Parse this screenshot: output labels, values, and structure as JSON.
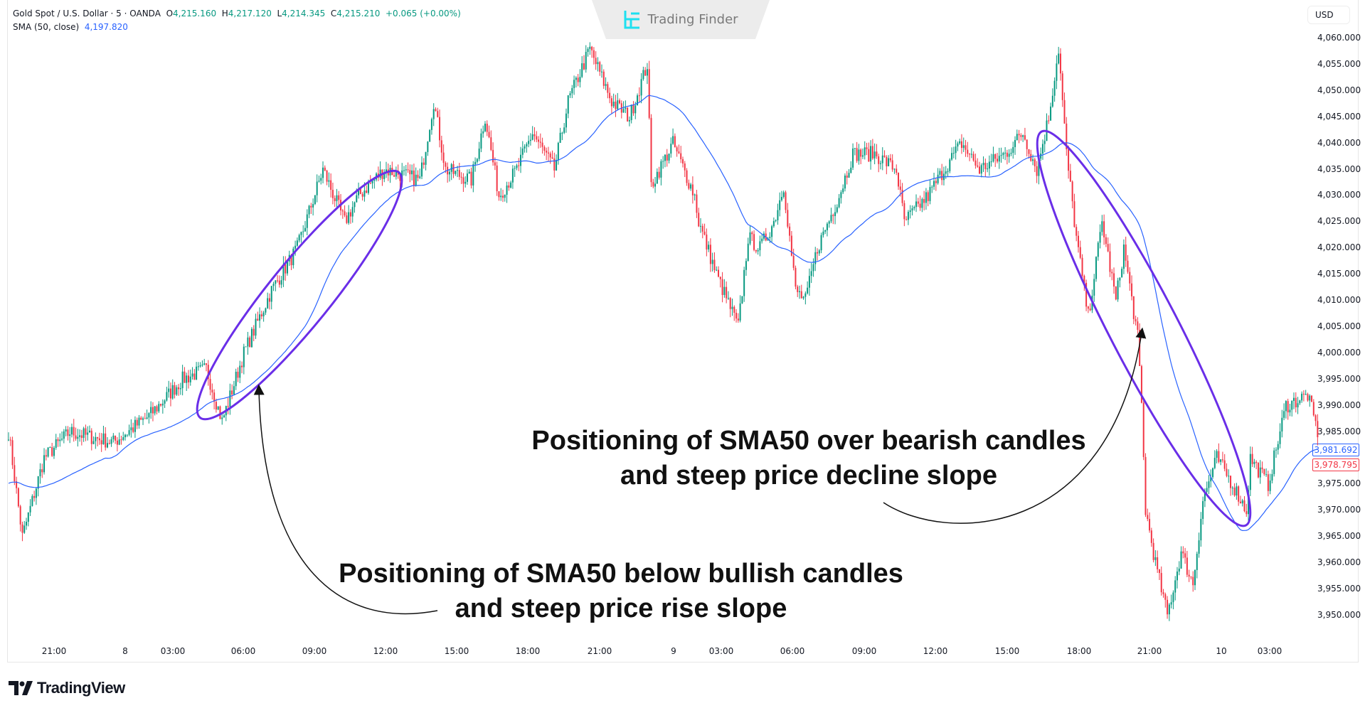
{
  "header": {
    "symbol": "Gold Spot / U.S. Dollar · 5 · OANDA",
    "open_label": "O",
    "open": "4,215.160",
    "high_label": "H",
    "high": "4,217.120",
    "low_label": "L",
    "low": "4,214.345",
    "close_label": "C",
    "close": "4,215.210",
    "change": "+0.065 (+0.00%)",
    "indicator": "SMA (50, close)",
    "indicator_value": "4,197.820"
  },
  "watermark": "Trading Finder",
  "currency": "USD",
  "price_ticks": [
    "4,060.000",
    "4,055.000",
    "4,050.000",
    "4,045.000",
    "4,040.000",
    "4,035.000",
    "4,030.000",
    "4,025.000",
    "4,020.000",
    "4,015.000",
    "4,010.000",
    "4,005.000",
    "4,000.000",
    "3,995.000",
    "3,990.000",
    "3,985.000",
    "3,975.000",
    "3,970.000",
    "3,965.000",
    "3,960.000",
    "3,955.000",
    "3,950.000"
  ],
  "time_ticks": [
    "21:00",
    "8",
    "03:00",
    "06:00",
    "09:00",
    "12:00",
    "15:00",
    "18:00",
    "21:00",
    "9",
    "03:00",
    "06:00",
    "09:00",
    "12:00",
    "15:00",
    "18:00",
    "21:00",
    "10",
    "03:00"
  ],
  "price_labels": {
    "sma": "3,981.692",
    "last": "3,978.795"
  },
  "annotations": {
    "bearish_line1": "Positioning of SMA50 over bearish candles",
    "bearish_line2": "and steep price decline slope",
    "bullish_line1": "Positioning of SMA50 below bullish candles",
    "bullish_line2": "and steep price rise slope"
  },
  "footer_logo": "TradingView",
  "colors": {
    "up": "#089981",
    "down": "#f23645",
    "sma": "#2962ff",
    "ellipse": "#6a2ee8"
  },
  "chart_data": {
    "type": "candlestick",
    "interval": "5m",
    "ylim": [
      3947,
      4062
    ],
    "indicator": {
      "name": "SMA",
      "period": 50
    },
    "close_path": [
      [
        0,
        3985
      ],
      [
        7,
        3965
      ],
      [
        18,
        3980
      ],
      [
        31,
        3985
      ],
      [
        53,
        3983
      ],
      [
        71,
        3988
      ],
      [
        88,
        3995
      ],
      [
        100,
        3997
      ],
      [
        108,
        3987
      ],
      [
        119,
        4000
      ],
      [
        133,
        4012
      ],
      [
        146,
        4020
      ],
      [
        159,
        4035
      ],
      [
        170,
        4025
      ],
      [
        177,
        4030
      ],
      [
        190,
        4035
      ],
      [
        208,
        4033
      ],
      [
        215,
        4048
      ],
      [
        221,
        4035
      ],
      [
        234,
        4033
      ],
      [
        241,
        4045
      ],
      [
        248,
        4030
      ],
      [
        257,
        4035
      ],
      [
        265,
        4042
      ],
      [
        276,
        4035
      ],
      [
        283,
        4048
      ],
      [
        294,
        4058
      ],
      [
        305,
        4048
      ],
      [
        314,
        4045
      ],
      [
        323,
        4055
      ],
      [
        325,
        4032
      ],
      [
        336,
        4040
      ],
      [
        347,
        4030
      ],
      [
        349,
        4025
      ],
      [
        358,
        4015
      ],
      [
        369,
        4005
      ],
      [
        374,
        4022
      ],
      [
        380,
        4020
      ],
      [
        387,
        4025
      ],
      [
        392,
        4032
      ],
      [
        398,
        4012
      ],
      [
        403,
        4010
      ],
      [
        409,
        4020
      ],
      [
        420,
        4030
      ],
      [
        427,
        4038
      ],
      [
        438,
        4038
      ],
      [
        449,
        4035
      ],
      [
        453,
        4025
      ],
      [
        465,
        4030
      ],
      [
        473,
        4035
      ],
      [
        482,
        4040
      ],
      [
        491,
        4035
      ],
      [
        504,
        4038
      ],
      [
        513,
        4042
      ],
      [
        520,
        4035
      ],
      [
        526,
        4045
      ],
      [
        531,
        4058
      ],
      [
        535,
        4038
      ],
      [
        540,
        4022
      ],
      [
        546,
        4007
      ],
      [
        553,
        4025
      ],
      [
        560,
        4010
      ],
      [
        564,
        4020
      ],
      [
        571,
        4003
      ],
      [
        573,
        3990
      ],
      [
        575,
        3970
      ],
      [
        580,
        3960
      ],
      [
        586,
        3950
      ],
      [
        593,
        3962
      ],
      [
        599,
        3956
      ],
      [
        604,
        3972
      ],
      [
        611,
        3980
      ],
      [
        619,
        3975
      ],
      [
        626,
        3970
      ],
      [
        628,
        3980
      ],
      [
        637,
        3975
      ],
      [
        646,
        3990
      ],
      [
        657,
        3992
      ],
      [
        662,
        3985
      ]
    ]
  }
}
